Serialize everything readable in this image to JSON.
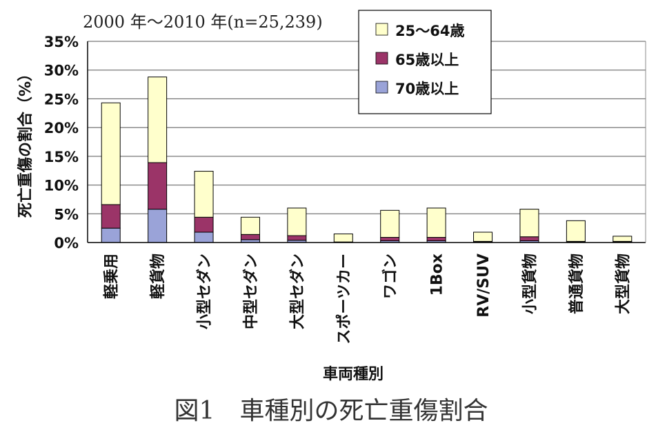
{
  "chart_data": {
    "type": "bar",
    "stacked": true,
    "subtitle": "2000 年〜2010 年(n=25,239)",
    "caption": "図1　車種別の死亡重傷割合",
    "xlabel": "車両種別",
    "ylabel": "死亡重傷の割合（%）",
    "ylim": [
      0,
      35
    ],
    "yticks": [
      "0%",
      "5%",
      "10%",
      "15%",
      "20%",
      "25%",
      "30%",
      "35%"
    ],
    "grid": true,
    "legend_position": "top-right",
    "categories": [
      "軽乗用",
      "軽貨物",
      "小型セダン",
      "中型セダン",
      "大型セダン",
      "スポーツカー",
      "ワゴン",
      "1Box",
      "RV/SUV",
      "小型貨物",
      "普通貨物",
      "大型貨物"
    ],
    "series": [
      {
        "name": "70歳以上",
        "color": "#9aa3d8",
        "values": [
          2.5,
          5.8,
          1.8,
          0.5,
          0.4,
          0.1,
          0.3,
          0.3,
          0.1,
          0.3,
          0.1,
          0.1
        ]
      },
      {
        "name": "65歳以上",
        "color": "#9b3468",
        "values": [
          4.1,
          8.1,
          2.6,
          0.9,
          0.8,
          0.0,
          0.6,
          0.6,
          0.1,
          0.7,
          0.1,
          0.1
        ]
      },
      {
        "name": "25〜64歳",
        "color": "#ffffcc",
        "values": [
          17.7,
          14.9,
          8.0,
          3.0,
          4.8,
          1.4,
          4.7,
          5.1,
          1.6,
          4.8,
          3.6,
          0.9
        ]
      }
    ],
    "legend": [
      "25〜64歳",
      "65歳以上",
      "70歳以上"
    ]
  }
}
